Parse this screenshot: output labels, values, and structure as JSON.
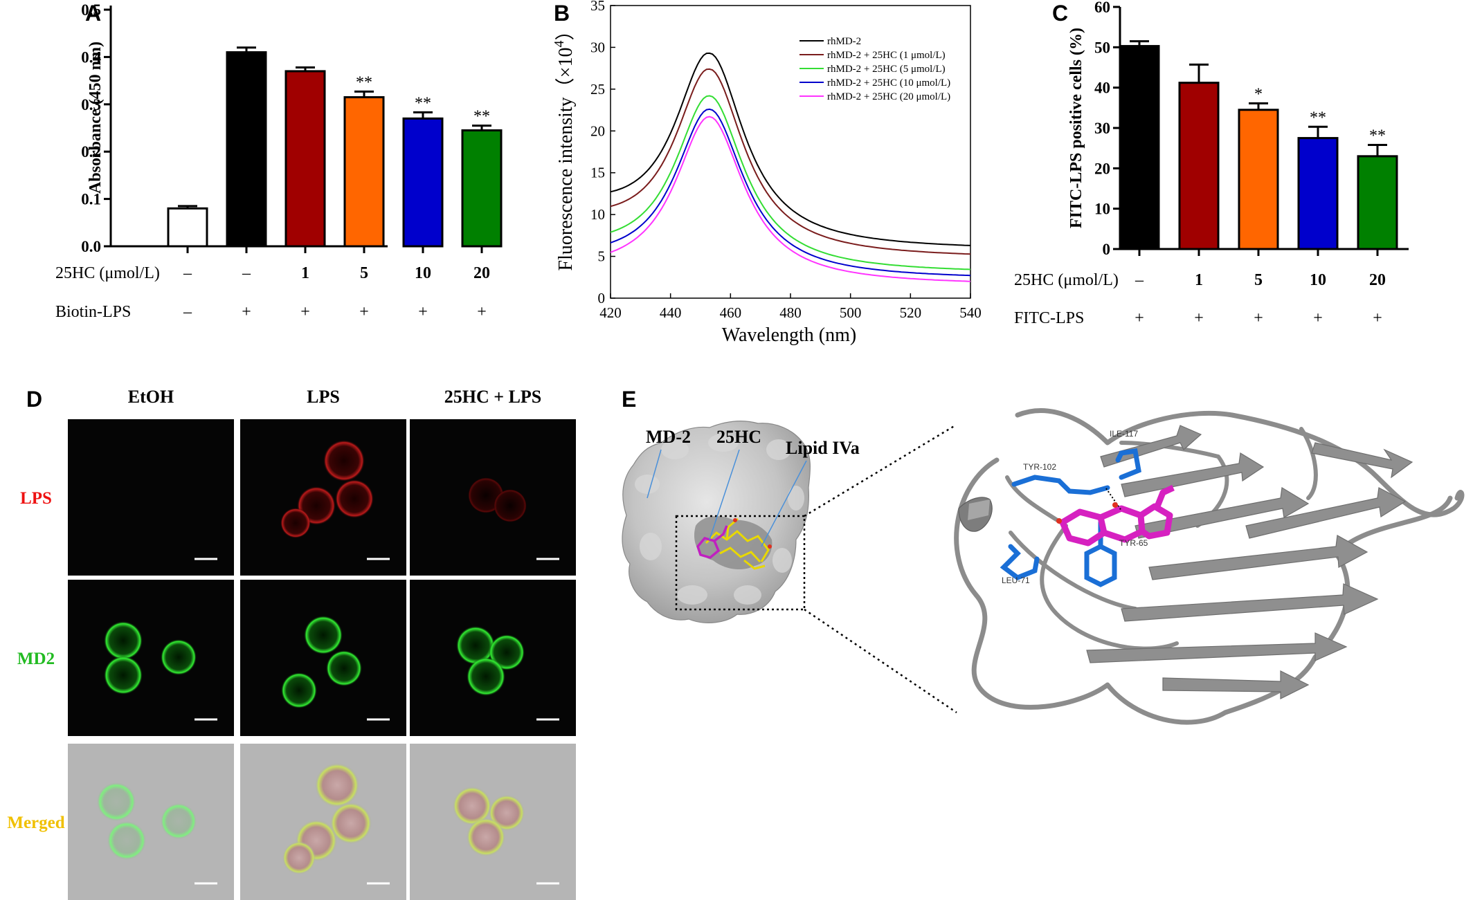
{
  "panels": {
    "A": {
      "letter": "A"
    },
    "B": {
      "letter": "B"
    },
    "C": {
      "letter": "C"
    },
    "D": {
      "letter": "D"
    },
    "E": {
      "letter": "E"
    }
  },
  "colors": {
    "black": "#000000",
    "darkred": "#a00000",
    "orange": "#ff6600",
    "blue": "#0000cc",
    "green": "#008000",
    "white": "#ffffff",
    "brown": "#7a1c1c",
    "lightgreen": "#33dd33",
    "magenta": "#ff33ff"
  },
  "chart_data": [
    {
      "id": "A",
      "type": "bar",
      "ylabel": "Absorbance (450 nm)",
      "ylim": [
        0,
        0.5
      ],
      "yticks": [
        "0.0",
        "0.1",
        "0.2",
        "0.3",
        "0.4",
        "0.5"
      ],
      "yticks_values": [
        0,
        0.1,
        0.2,
        0.3,
        0.4,
        0.5
      ],
      "values": [
        0.08,
        0.41,
        0.37,
        0.315,
        0.27,
        0.245
      ],
      "errors": [
        0.005,
        0.01,
        0.008,
        0.012,
        0.013,
        0.01
      ],
      "fills": [
        "#ffffff",
        "#000000",
        "#a00000",
        "#ff6600",
        "#0000cc",
        "#008000"
      ],
      "significance": [
        "",
        "",
        "",
        "**",
        "**",
        "**"
      ],
      "treatment_rows": [
        {
          "label": "25HC (μmol/L)",
          "values": [
            "–",
            "–",
            "1",
            "5",
            "10",
            "20"
          ],
          "bold_from": 2
        },
        {
          "label": "Biotin-LPS",
          "values": [
            "–",
            "+",
            "+",
            "+",
            "+",
            "+"
          ],
          "bold_from": 99
        }
      ]
    },
    {
      "id": "B",
      "type": "line",
      "xlabel": "Wavelength (nm)",
      "ylabel": "Fluorescence intensity（×10",
      "ylabel_exp": "4",
      "ylabel_close": "）",
      "xlim": [
        420,
        540
      ],
      "ylim": [
        0,
        35
      ],
      "xticks": [
        "420",
        "440",
        "460",
        "480",
        "500",
        "520",
        "540"
      ],
      "yticks": [
        "0",
        "5",
        "10",
        "15",
        "20",
        "25",
        "30",
        "35"
      ],
      "series": [
        {
          "name": "rhMD-2",
          "color": "#000000",
          "peak": 29.3,
          "base": 5.7
        },
        {
          "name": "rhMD-2 + 25HC (1 μmol/L)",
          "color": "#7a1c1c",
          "peak": 27.4,
          "base": 4.7
        },
        {
          "name": "rhMD-2 + 25HC (5 μmol/L)",
          "color": "#33dd33",
          "peak": 24.2,
          "base": 2.9
        },
        {
          "name": "rhMD-2 + 25HC (10 μmol/L)",
          "color": "#0000cc",
          "peak": 22.6,
          "base": 2.2
        },
        {
          "name": "rhMD-2 + 25HC (20 μmol/L)",
          "color": "#ff33ff",
          "peak": 21.7,
          "base": 1.5
        }
      ],
      "peak_x": 453
    },
    {
      "id": "C",
      "type": "bar",
      "ylabel": "FITC-LPS positive cells (%)",
      "ylim": [
        0,
        60
      ],
      "yticks": [
        "0",
        "10",
        "20",
        "30",
        "40",
        "50",
        "60"
      ],
      "yticks_values": [
        0,
        10,
        20,
        30,
        40,
        50,
        60
      ],
      "values": [
        50.3,
        41.2,
        34.5,
        27.5,
        23.0
      ],
      "errors": [
        1.2,
        4.5,
        1.6,
        2.8,
        2.8
      ],
      "fills": [
        "#000000",
        "#a00000",
        "#ff6600",
        "#0000cc",
        "#008000"
      ],
      "significance": [
        "",
        "",
        "*",
        "**",
        "**"
      ],
      "treatment_rows": [
        {
          "label": "25HC (μmol/L)",
          "values": [
            "–",
            "1",
            "5",
            "10",
            "20"
          ],
          "bold_from": 1
        },
        {
          "label": "FITC-LPS",
          "values": [
            "+",
            "+",
            "+",
            "+",
            "+"
          ],
          "bold_from": 99
        }
      ]
    }
  ],
  "panel_d": {
    "columns": [
      "EtOH",
      "LPS",
      "25HC + LPS"
    ],
    "rows": [
      {
        "label": "LPS",
        "color": "#ee1111"
      },
      {
        "label": "MD2",
        "color": "#22bb22"
      },
      {
        "label": "Merged",
        "color": "#f0c000"
      }
    ]
  },
  "panel_e": {
    "labels": [
      "MD-2",
      "25HC",
      "Lipid IVa"
    ],
    "residues": [
      "ILE-117",
      "TYR-102",
      "TYR-65",
      "LEU-71"
    ]
  }
}
